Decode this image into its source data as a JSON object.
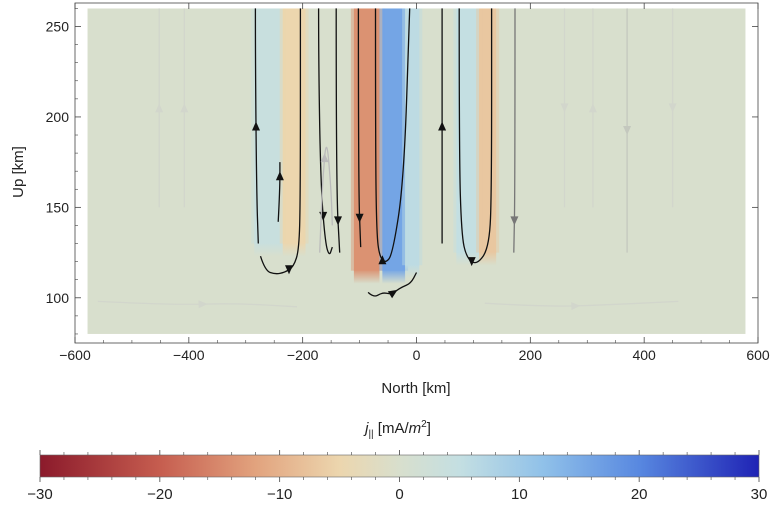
{
  "chart_data": [
    {
      "type": "heatmap",
      "title": "",
      "xlabel": "North [km]",
      "ylabel": "Up [km]",
      "xlim": [
        -600,
        600
      ],
      "ylim": [
        75,
        263
      ],
      "data_extent": {
        "x": [
          -578,
          578
        ],
        "y": [
          80,
          260
        ]
      },
      "xticks": [
        -600,
        -400,
        -200,
        0,
        200,
        400,
        600
      ],
      "xtick_labels": [
        "−600",
        "−400",
        "−200",
        "0",
        "200",
        "400",
        "600"
      ],
      "yticks": [
        100,
        150,
        200,
        250
      ],
      "ytick_labels": [
        "100",
        "150",
        "200",
        "250"
      ],
      "background_value": 0,
      "current_sheets": [
        {
          "x0": -285,
          "x1": -235,
          "value": 4,
          "bottom": 130
        },
        {
          "x0": -235,
          "x1": -195,
          "value": -5,
          "bottom": 130
        },
        {
          "x0": -110,
          "x1": -65,
          "value": -14,
          "bottom": 115
        },
        {
          "x0": -60,
          "x1": -20,
          "value": 16,
          "bottom": 115
        },
        {
          "x0": -20,
          "x1": 5,
          "value": 6,
          "bottom": 118
        },
        {
          "x0": 70,
          "x1": 110,
          "value": 5,
          "bottom": 125
        },
        {
          "x0": 110,
          "x1": 140,
          "value": -7,
          "bottom": 125
        }
      ],
      "field_lines": [
        {
          "x": [
            -283,
            -283,
            -281,
            -278
          ],
          "y": [
            260,
            230,
            160,
            130
          ],
          "direction": "up",
          "color": "#111111"
        },
        {
          "x": [
            -274,
            -266,
            -248,
            -232,
            -216,
            -206,
            -204,
            -204
          ],
          "y": [
            123,
            115,
            113,
            114,
            117,
            127,
            160,
            260
          ],
          "direction": "down",
          "color": "#111111"
        },
        {
          "x": [
            -243,
            -240,
            -240
          ],
          "y": [
            142,
            160,
            175
          ],
          "direction": "up",
          "color": "#111111"
        },
        {
          "x": [
            -172,
            -172,
            -168,
            -160,
            -153,
            -148
          ],
          "y": [
            260,
            230,
            160,
            130,
            123,
            128
          ],
          "direction": "down",
          "color": "#111111"
        },
        {
          "x": [
            -141,
            -141,
            -135
          ],
          "y": [
            260,
            160,
            125
          ],
          "direction": "down",
          "color": "#111111"
        },
        {
          "x": [
            -102,
            -102,
            -98
          ],
          "y": [
            260,
            160,
            128
          ],
          "direction": "down",
          "color": "#111111"
        },
        {
          "x": [
            -72,
            -72,
            -70,
            -65,
            -55,
            -42,
            -22,
            -12
          ],
          "y": [
            260,
            180,
            135,
            123,
            119,
            124,
            165,
            260
          ],
          "direction": "up",
          "color": "#111111"
        },
        {
          "x": [
            -85,
            -75,
            -60,
            -45,
            -35,
            -25,
            -10,
            0
          ],
          "y": [
            103,
            100,
            103,
            102,
            104,
            106,
            108,
            114
          ],
          "direction": "right",
          "color": "#111111"
        },
        {
          "x": [
            45,
            45
          ],
          "y": [
            130,
            260
          ],
          "direction": "up",
          "color": "#111111"
        },
        {
          "x": [
            75,
            75,
            79,
            88,
            106,
            128,
            132,
            132
          ],
          "y": [
            260,
            180,
            135,
            122,
            118,
            128,
            160,
            260
          ],
          "direction": "down",
          "color": "#111111"
        },
        {
          "x": [
            173,
            173,
            171
          ],
          "y": [
            260,
            160,
            125
          ],
          "direction": "down",
          "color": "#777777"
        },
        {
          "x": [
            -170,
            -168,
            -165,
            -158,
            -150,
            -148
          ],
          "y": [
            125,
            140,
            165,
            190,
            160,
            140
          ],
          "direction": "up",
          "color": "#bbbbbb"
        },
        {
          "x": [
            -408,
            -408
          ],
          "y": [
            150,
            260
          ],
          "direction": "up",
          "color": "#d2d6cc"
        },
        {
          "x": [
            -452,
            -452
          ],
          "y": [
            150,
            260
          ],
          "direction": "up",
          "color": "#d2d6cc"
        },
        {
          "x": [
            260,
            260
          ],
          "y": [
            150,
            260
          ],
          "direction": "down",
          "color": "#d2d6cc"
        },
        {
          "x": [
            310,
            310
          ],
          "y": [
            150,
            260
          ],
          "direction": "up",
          "color": "#d2d6cc"
        },
        {
          "x": [
            370,
            370
          ],
          "y": [
            125,
            260
          ],
          "direction": "down",
          "color": "#c4c8be"
        },
        {
          "x": [
            450,
            450
          ],
          "y": [
            150,
            260
          ],
          "direction": "down",
          "color": "#d2d6cc"
        },
        {
          "x": [
            -560,
            -430,
            -320,
            -210
          ],
          "y": [
            98,
            96,
            97,
            95
          ],
          "direction": "right",
          "color": "#d2d6cc"
        },
        {
          "x": [
            120,
            230,
            330,
            460
          ],
          "y": [
            97,
            95,
            96,
            98
          ],
          "direction": "right",
          "color": "#d2d6cc"
        }
      ]
    },
    {
      "type": "heatmap",
      "title": "",
      "xlabel": "",
      "ylabel": "",
      "colorbar_label": {
        "symbol": "j",
        "subscript": "||",
        "unit_open": " [mA/",
        "unit_italic": "m",
        "unit_sup": "2",
        "unit_close": "]"
      },
      "range": [
        -30,
        30
      ],
      "ticks": [
        -30,
        -20,
        -10,
        0,
        10,
        20,
        30
      ],
      "tick_labels": [
        "−30",
        "−20",
        "−10",
        "0",
        "10",
        "20",
        "30"
      ],
      "colormap": [
        {
          "value": -30,
          "color": "#8b1a2b"
        },
        {
          "value": -20,
          "color": "#c65d4f"
        },
        {
          "value": -12,
          "color": "#e2a37e"
        },
        {
          "value": -5,
          "color": "#ecd6ae"
        },
        {
          "value": 0,
          "color": "#d8dfcd"
        },
        {
          "value": 5,
          "color": "#c4dfe2"
        },
        {
          "value": 12,
          "color": "#90c1e9"
        },
        {
          "value": 20,
          "color": "#5888e0"
        },
        {
          "value": 30,
          "color": "#1f23b5"
        }
      ]
    }
  ]
}
